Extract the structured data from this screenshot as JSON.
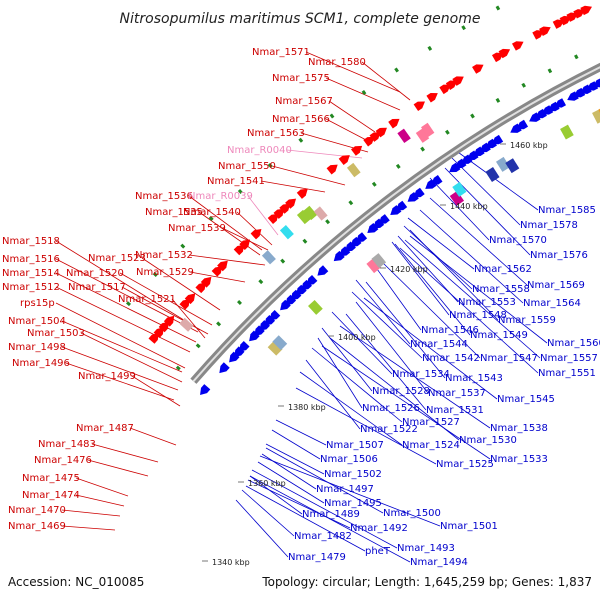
{
  "title": "Nitrosopumilus maritimus SCM1, complete genome",
  "accession_text": "Accession: NC_010085",
  "topology_text": "Topology: circular; Length: 1,645,259 bp; Genes: 1,837",
  "colors": {
    "forward_cds": "#ff0000",
    "reverse_cds": "#0000ee",
    "forward_label": "#cc0000",
    "reverse_label": "#0000cc",
    "rna_label": "#ee88bb",
    "backbone": "#888888",
    "backbone_highlight": "#e0e0e0",
    "gc_marks": "#228822",
    "feature_palette": [
      "#33ddee",
      "#ff7799",
      "#2233aa",
      "#ccbb66",
      "#88aacc",
      "#ddaaaa",
      "#ee9922",
      "#cc0088",
      "#aaaaaa",
      "#99cc33"
    ]
  },
  "kbp_markers": [
    "1340 kbp",
    "1360 kbp",
    "1380 kbp",
    "1400 kbp",
    "1420 kbp",
    "1440 kbp",
    "1460 kbp"
  ],
  "left_labels": [
    {
      "text": "Nmar_1571",
      "kind": "cds"
    },
    {
      "text": "Nmar_1580",
      "kind": "cds"
    },
    {
      "text": "Nmar_1575",
      "kind": "cds"
    },
    {
      "text": "Nmar_1567",
      "kind": "cds"
    },
    {
      "text": "Nmar_1566",
      "kind": "cds"
    },
    {
      "text": "Nmar_1563",
      "kind": "cds"
    },
    {
      "text": "Nmar_R0040",
      "kind": "rna"
    },
    {
      "text": "Nmar_1550",
      "kind": "cds"
    },
    {
      "text": "Nmar_1541",
      "kind": "cds"
    },
    {
      "text": "Nmar_1536",
      "kind": "cds"
    },
    {
      "text": "Nmar_R0039",
      "kind": "rna"
    },
    {
      "text": "Nmar_1535",
      "kind": "cds"
    },
    {
      "text": "Nmar_1540",
      "kind": "cds"
    },
    {
      "text": "Nmar_1539",
      "kind": "cds"
    },
    {
      "text": "Nmar_1518",
      "kind": "cds"
    },
    {
      "text": "Nmar_1532",
      "kind": "cds"
    },
    {
      "text": "Nmar_1523",
      "kind": "cds"
    },
    {
      "text": "Nmar_1516",
      "kind": "cds"
    },
    {
      "text": "Nmar_1529",
      "kind": "cds"
    },
    {
      "text": "Nmar_1514",
      "kind": "cds"
    },
    {
      "text": "Nmar_1520",
      "kind": "cds"
    },
    {
      "text": "Nmar_1512",
      "kind": "cds"
    },
    {
      "text": "Nmar_1517",
      "kind": "cds"
    },
    {
      "text": "Nmar_1521",
      "kind": "cds"
    },
    {
      "text": "rps15p",
      "kind": "cds"
    },
    {
      "text": "Nmar_1504",
      "kind": "cds"
    },
    {
      "text": "Nmar_1503",
      "kind": "cds"
    },
    {
      "text": "Nmar_1498",
      "kind": "cds"
    },
    {
      "text": "Nmar_1496",
      "kind": "cds"
    },
    {
      "text": "Nmar_1499",
      "kind": "cds"
    },
    {
      "text": "Nmar_1487",
      "kind": "cds"
    },
    {
      "text": "Nmar_1483",
      "kind": "cds"
    },
    {
      "text": "Nmar_1476",
      "kind": "cds"
    },
    {
      "text": "Nmar_1475",
      "kind": "cds"
    },
    {
      "text": "Nmar_1474",
      "kind": "cds"
    },
    {
      "text": "Nmar_1470",
      "kind": "cds"
    },
    {
      "text": "Nmar_1469",
      "kind": "cds"
    }
  ],
  "right_labels": [
    {
      "text": "Nmar_1585"
    },
    {
      "text": "Nmar_1578"
    },
    {
      "text": "Nmar_1570"
    },
    {
      "text": "Nmar_1576"
    },
    {
      "text": "Nmar_1562"
    },
    {
      "text": "Nmar_1569"
    },
    {
      "text": "Nmar_1558"
    },
    {
      "text": "Nmar_1564"
    },
    {
      "text": "Nmar_1553"
    },
    {
      "text": "Nmar_1548"
    },
    {
      "text": "Nmar_1559"
    },
    {
      "text": "Nmar_1546"
    },
    {
      "text": "Nmar_1549"
    },
    {
      "text": "Nmar_1560"
    },
    {
      "text": "Nmar_1544"
    },
    {
      "text": "Nmar_1557"
    },
    {
      "text": "Nmar_1542"
    },
    {
      "text": "Nmar_1547"
    },
    {
      "text": "Nmar_1551"
    },
    {
      "text": "Nmar_1534"
    },
    {
      "text": "Nmar_1543"
    },
    {
      "text": "Nmar_1528"
    },
    {
      "text": "Nmar_1537"
    },
    {
      "text": "Nmar_1545"
    },
    {
      "text": "Nmar_1526"
    },
    {
      "text": "Nmar_1531"
    },
    {
      "text": "Nmar_1527"
    },
    {
      "text": "Nmar_1538"
    },
    {
      "text": "Nmar_1522"
    },
    {
      "text": "Nmar_1530"
    },
    {
      "text": "Nmar_1524"
    },
    {
      "text": "Nmar_1507"
    },
    {
      "text": "Nmar_1533"
    },
    {
      "text": "Nmar_1525"
    },
    {
      "text": "Nmar_1506"
    },
    {
      "text": "Nmar_1502"
    },
    {
      "text": "Nmar_1497"
    },
    {
      "text": "Nmar_1495"
    },
    {
      "text": "Nmar_1500"
    },
    {
      "text": "Nmar_1489"
    },
    {
      "text": "Nmar_1501"
    },
    {
      "text": "Nmar_1492"
    },
    {
      "text": "Nmar_1482"
    },
    {
      "text": "Nmar_1493"
    },
    {
      "text": "pheT"
    },
    {
      "text": "Nmar_1479"
    },
    {
      "text": "Nmar_1494"
    }
  ]
}
